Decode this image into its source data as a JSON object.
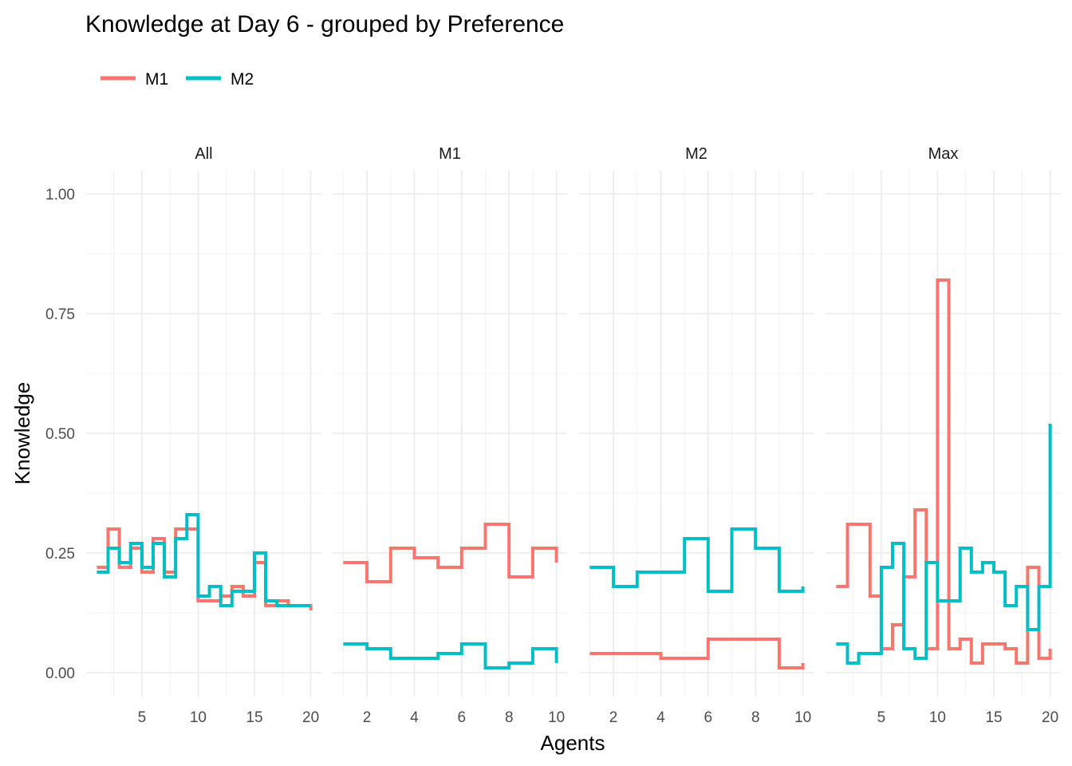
{
  "chart_data": {
    "type": "line",
    "step": "hv",
    "title": "Knowledge at Day 6 - grouped by Preference",
    "xlabel": "Agents",
    "ylabel": "Knowledge",
    "ylim": [
      0,
      1
    ],
    "yticks": [
      0,
      0.25,
      0.5,
      0.75,
      1
    ],
    "ytick_labels": [
      "0.00",
      "0.25",
      "0.50",
      "0.75",
      "1.00"
    ],
    "grid": true,
    "legend": {
      "position": "top-left",
      "entries": [
        {
          "name": "M1",
          "color": "#F8766D"
        },
        {
          "name": "M2",
          "color": "#00BFC4"
        }
      ]
    },
    "panels": [
      {
        "strip": "All",
        "xlim": [
          1,
          20
        ],
        "xticks": [
          5,
          10,
          15,
          20
        ],
        "series": [
          {
            "name": "M1",
            "color": "#F8766D",
            "x": [
              1,
              2,
              3,
              4,
              5,
              6,
              7,
              8,
              9,
              10,
              11,
              12,
              13,
              14,
              15,
              16,
              17,
              18,
              19,
              20
            ],
            "y": [
              0.22,
              0.3,
              0.22,
              0.26,
              0.21,
              0.28,
              0.21,
              0.3,
              0.3,
              0.15,
              0.15,
              0.16,
              0.18,
              0.16,
              0.23,
              0.14,
              0.15,
              0.14,
              0.14,
              0.13
            ]
          },
          {
            "name": "M2",
            "color": "#00BFC4",
            "x": [
              1,
              2,
              3,
              4,
              5,
              6,
              7,
              8,
              9,
              10,
              11,
              12,
              13,
              14,
              15,
              16,
              17,
              18,
              19,
              20
            ],
            "y": [
              0.21,
              0.26,
              0.23,
              0.27,
              0.22,
              0.27,
              0.2,
              0.28,
              0.33,
              0.16,
              0.18,
              0.14,
              0.17,
              0.17,
              0.25,
              0.15,
              0.14,
              0.14,
              0.14,
              0.14
            ]
          }
        ]
      },
      {
        "strip": "M1",
        "xlim": [
          1,
          10
        ],
        "xticks": [
          2,
          4,
          6,
          8,
          10
        ],
        "series": [
          {
            "name": "M1",
            "color": "#F8766D",
            "x": [
              1,
              2,
              3,
              4,
              5,
              6,
              7,
              8,
              9,
              10
            ],
            "y": [
              0.23,
              0.19,
              0.26,
              0.24,
              0.22,
              0.26,
              0.31,
              0.2,
              0.26,
              0.23
            ]
          },
          {
            "name": "M2",
            "color": "#00BFC4",
            "x": [
              1,
              2,
              3,
              4,
              5,
              6,
              7,
              8,
              9,
              10
            ],
            "y": [
              0.06,
              0.05,
              0.03,
              0.03,
              0.04,
              0.06,
              0.01,
              0.02,
              0.05,
              0.02
            ]
          }
        ]
      },
      {
        "strip": "M2",
        "xlim": [
          1,
          10
        ],
        "xticks": [
          2,
          4,
          6,
          8,
          10
        ],
        "series": [
          {
            "name": "M1",
            "color": "#F8766D",
            "x": [
              1,
              2,
              3,
              4,
              5,
              6,
              7,
              8,
              9,
              10
            ],
            "y": [
              0.04,
              0.04,
              0.04,
              0.03,
              0.03,
              0.07,
              0.07,
              0.07,
              0.01,
              0.02
            ]
          },
          {
            "name": "M2",
            "color": "#00BFC4",
            "x": [
              1,
              2,
              3,
              4,
              5,
              6,
              7,
              8,
              9,
              10
            ],
            "y": [
              0.22,
              0.18,
              0.21,
              0.21,
              0.28,
              0.17,
              0.3,
              0.26,
              0.17,
              0.18
            ]
          }
        ]
      },
      {
        "strip": "Max",
        "xlim": [
          1,
          20
        ],
        "xticks": [
          5,
          10,
          15,
          20
        ],
        "series": [
          {
            "name": "M1",
            "color": "#F8766D",
            "x": [
              1,
              2,
              3,
              4,
              5,
              6,
              7,
              8,
              9,
              10,
              11,
              12,
              13,
              14,
              15,
              16,
              17,
              18,
              19,
              20
            ],
            "y": [
              0.18,
              0.31,
              0.31,
              0.16,
              0.05,
              0.1,
              0.2,
              0.34,
              0.05,
              0.82,
              0.05,
              0.07,
              0.02,
              0.06,
              0.06,
              0.05,
              0.02,
              0.22,
              0.03,
              0.05
            ]
          },
          {
            "name": "M2",
            "color": "#00BFC4",
            "x": [
              1,
              2,
              3,
              4,
              5,
              6,
              7,
              8,
              9,
              10,
              11,
              12,
              13,
              14,
              15,
              16,
              17,
              18,
              19,
              20
            ],
            "y": [
              0.06,
              0.02,
              0.04,
              0.04,
              0.22,
              0.27,
              0.05,
              0.03,
              0.23,
              0.15,
              0.15,
              0.26,
              0.21,
              0.23,
              0.21,
              0.14,
              0.18,
              0.09,
              0.18,
              0.52
            ]
          }
        ]
      }
    ]
  }
}
